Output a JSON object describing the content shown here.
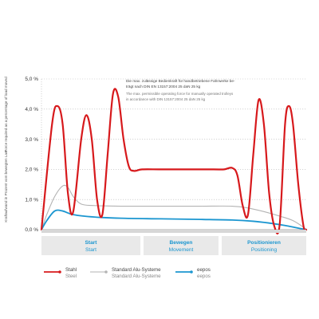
{
  "chart_data": {
    "type": "line",
    "ylabel": "Kraftaufwand in Prozent vom bewegten Last",
    "ylabel_en": "Force required as a percentage of load moved",
    "y_unit": "%",
    "ylim": [
      0,
      5.0
    ],
    "y_ticks": [
      "0,0 %",
      "1,0 %",
      "2,0 %",
      "3,0 %",
      "4,0 %",
      "5,0 %"
    ],
    "grid": "horizontal dotted",
    "annotation": {
      "de": [
        "Die max. zulässige Bedienkraft für handbetriebene Fahrwerke be-",
        "trägt nach DIN EN 13157:2004 25 daN 25 kg"
      ],
      "en": [
        "The max. permissible operating force for manually operated trolleys",
        "in accordance with DIN 13157:2004 25 daN 25 kg"
      ]
    },
    "phases": [
      {
        "de": "Start",
        "en": "Start"
      },
      {
        "de": "Bewegen",
        "en": "Movement"
      },
      {
        "de": "Positionieren",
        "en": "Positioning"
      }
    ],
    "series": [
      {
        "name": "Stahl",
        "name_en": "Steel",
        "color": "#d7191c",
        "points": [
          [
            0,
            0
          ],
          [
            0.04,
            3.5
          ],
          [
            0.06,
            4.1
          ],
          [
            0.08,
            3.5
          ],
          [
            0.1,
            1.2
          ],
          [
            0.12,
            0.6
          ],
          [
            0.15,
            3.0
          ],
          [
            0.17,
            3.8
          ],
          [
            0.19,
            3.0
          ],
          [
            0.21,
            1.0
          ],
          [
            0.23,
            0.5
          ],
          [
            0.25,
            2.5
          ],
          [
            0.27,
            4.5
          ],
          [
            0.29,
            4.4
          ],
          [
            0.31,
            3.0
          ],
          [
            0.33,
            2.1
          ],
          [
            0.35,
            1.95
          ],
          [
            0.38,
            2.0
          ],
          [
            0.45,
            2.0
          ],
          [
            0.55,
            2.0
          ],
          [
            0.65,
            2.0
          ],
          [
            0.69,
            2.0
          ],
          [
            0.72,
            2.05
          ],
          [
            0.74,
            1.8
          ],
          [
            0.76,
            0.8
          ],
          [
            0.78,
            0.5
          ],
          [
            0.8,
            2.5
          ],
          [
            0.82,
            4.3
          ],
          [
            0.84,
            3.5
          ],
          [
            0.86,
            1.2
          ],
          [
            0.88,
            0.1
          ],
          [
            0.9,
            0.2
          ],
          [
            0.92,
            3.5
          ],
          [
            0.935,
            4.1
          ],
          [
            0.95,
            3.5
          ],
          [
            0.97,
            1.5
          ],
          [
            0.99,
            0.1
          ],
          [
            1.0,
            0
          ]
        ]
      },
      {
        "name": "Standard Alu-Systeme",
        "name_en": "Standard Alu-Systeme",
        "color": "#b3b3b3",
        "points": [
          [
            0,
            0
          ],
          [
            0.02,
            0.5
          ],
          [
            0.05,
            1.1
          ],
          [
            0.08,
            1.45
          ],
          [
            0.1,
            1.4
          ],
          [
            0.12,
            1.1
          ],
          [
            0.15,
            0.85
          ],
          [
            0.2,
            0.8
          ],
          [
            0.3,
            0.78
          ],
          [
            0.45,
            0.78
          ],
          [
            0.6,
            0.78
          ],
          [
            0.72,
            0.78
          ],
          [
            0.78,
            0.72
          ],
          [
            0.84,
            0.6
          ],
          [
            0.9,
            0.45
          ],
          [
            0.95,
            0.3
          ],
          [
            1.0,
            0.02
          ]
        ]
      },
      {
        "name": "eepos",
        "name_en": "eepos",
        "color": "#1b96d0",
        "points": [
          [
            0,
            0
          ],
          [
            0.02,
            0.3
          ],
          [
            0.05,
            0.62
          ],
          [
            0.08,
            0.62
          ],
          [
            0.12,
            0.5
          ],
          [
            0.2,
            0.42
          ],
          [
            0.3,
            0.38
          ],
          [
            0.45,
            0.36
          ],
          [
            0.6,
            0.34
          ],
          [
            0.72,
            0.32
          ],
          [
            0.8,
            0.28
          ],
          [
            0.86,
            0.22
          ],
          [
            0.92,
            0.14
          ],
          [
            0.96,
            0.07
          ],
          [
            1.0,
            0.0
          ]
        ]
      }
    ]
  }
}
